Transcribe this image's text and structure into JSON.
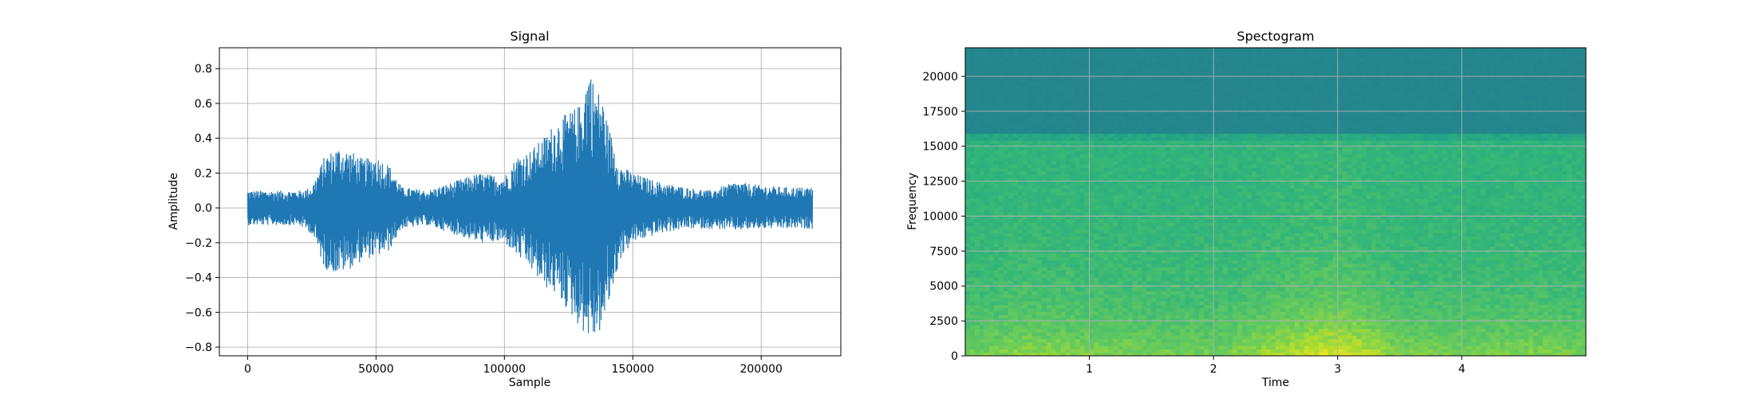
{
  "chart_data": [
    {
      "type": "line",
      "title": "Signal",
      "xlabel": "Sample",
      "ylabel": "Amplitude",
      "xlim": [
        -11000,
        231000
      ],
      "ylim": [
        -0.85,
        0.92
      ],
      "xticks": [
        0,
        50000,
        100000,
        150000,
        200000
      ],
      "yticks": [
        -0.8,
        -0.6,
        -0.4,
        -0.2,
        0.0,
        0.2,
        0.4,
        0.6,
        0.8
      ],
      "grid": true,
      "color": "#1f77b4",
      "series": [
        {
          "x": [
            0,
            10000,
            20000,
            25000,
            30000,
            35000,
            40000,
            45000,
            50000,
            55000,
            60000,
            70000,
            80000,
            90000,
            100000,
            105000,
            110000,
            115000,
            120000,
            125000,
            130000,
            133000,
            135000,
            138000,
            140000,
            145000,
            150000,
            160000,
            170000,
            180000,
            190000,
            200000,
            210000,
            220000
          ],
          "upper": [
            0.1,
            0.1,
            0.1,
            0.12,
            0.3,
            0.35,
            0.33,
            0.28,
            0.3,
            0.25,
            0.12,
            0.1,
            0.15,
            0.2,
            0.18,
            0.3,
            0.33,
            0.4,
            0.5,
            0.55,
            0.6,
            0.84,
            0.7,
            0.65,
            0.5,
            0.25,
            0.2,
            0.15,
            0.12,
            0.1,
            0.15,
            0.13,
            0.12,
            0.12
          ],
          "lower": [
            -0.1,
            -0.1,
            -0.1,
            -0.15,
            -0.35,
            -0.38,
            -0.35,
            -0.3,
            -0.28,
            -0.25,
            -0.12,
            -0.1,
            -0.15,
            -0.2,
            -0.2,
            -0.28,
            -0.35,
            -0.45,
            -0.5,
            -0.6,
            -0.7,
            -0.75,
            -0.76,
            -0.7,
            -0.6,
            -0.3,
            -0.2,
            -0.15,
            -0.12,
            -0.12,
            -0.13,
            -0.12,
            -0.12,
            -0.12
          ]
        }
      ]
    },
    {
      "type": "heatmap",
      "title": "Spectogram",
      "xlabel": "Time",
      "ylabel": "Frequency",
      "xlim": [
        0,
        5
      ],
      "ylim": [
        0,
        22050
      ],
      "xticks": [
        1,
        2,
        3,
        4
      ],
      "yticks": [
        0,
        2500,
        5000,
        7500,
        10000,
        12500,
        15000,
        17500,
        20000
      ],
      "grid": true,
      "colormap": "viridis",
      "cutoff_frequency": 16000,
      "energy_profile": {
        "time": [
          0,
          0.5,
          1.0,
          1.5,
          2.0,
          2.5,
          2.8,
          3.0,
          3.2,
          3.5,
          4.0,
          4.5,
          5.0
        ],
        "level": [
          0.45,
          0.6,
          0.55,
          0.5,
          0.48,
          0.7,
          0.85,
          0.9,
          0.8,
          0.55,
          0.5,
          0.55,
          0.5
        ]
      }
    }
  ]
}
